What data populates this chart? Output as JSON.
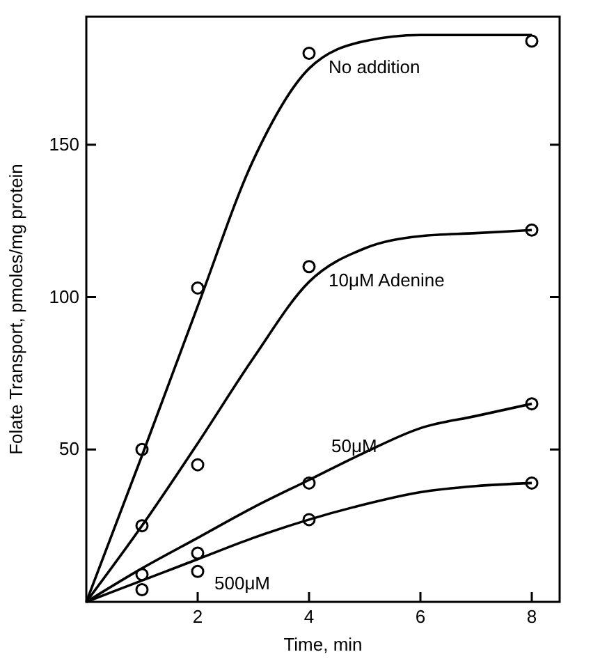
{
  "chart_data": {
    "type": "scatter",
    "xlabel": "Time, min",
    "ylabel": "Folate Transport, pmoles/mg protein",
    "xlim": [
      0,
      8.5
    ],
    "ylim": [
      0,
      192
    ],
    "xticks": [
      2,
      4,
      6,
      8
    ],
    "yticks": [
      50,
      100,
      150
    ],
    "marker": "circle",
    "grid": false,
    "series": [
      {
        "name": "No addition",
        "color": "#000000",
        "x": [
          1,
          2,
          4,
          8
        ],
        "values": [
          50,
          103,
          180,
          184
        ]
      },
      {
        "name": "10μM Adenine",
        "color": "#000000",
        "x": [
          1,
          2,
          4,
          8
        ],
        "values": [
          25,
          45,
          110,
          122
        ]
      },
      {
        "name": "50μM",
        "color": "#000000",
        "x": [
          1,
          2,
          4,
          8
        ],
        "values": [
          9,
          16,
          39,
          65
        ]
      },
      {
        "name": "500μM",
        "color": "#000000",
        "x": [
          1,
          2,
          4,
          8
        ],
        "values": [
          4,
          10,
          27,
          39
        ]
      },
      {
        "type": "line",
        "marker": "none",
        "color": "#000000",
        "x": [
          0,
          1,
          2,
          3,
          4,
          5,
          6,
          7,
          8
        ],
        "values": [
          0,
          48,
          97,
          145,
          175,
          184,
          186,
          186,
          186
        ]
      },
      {
        "type": "line",
        "marker": "none",
        "color": "#000000",
        "x": [
          0,
          1,
          2,
          3,
          4,
          5,
          6,
          7,
          8
        ],
        "values": [
          0,
          25,
          52,
          80,
          105,
          116,
          120,
          121,
          122
        ]
      },
      {
        "type": "line",
        "marker": "none",
        "color": "#000000",
        "x": [
          0,
          1,
          2,
          3,
          4,
          5,
          6,
          7,
          8
        ],
        "values": [
          0,
          11,
          21,
          31,
          40,
          49,
          57,
          61,
          65
        ]
      },
      {
        "type": "line",
        "marker": "none",
        "color": "#000000",
        "x": [
          0,
          1,
          2,
          3,
          4,
          5,
          6,
          7,
          8
        ],
        "values": [
          0,
          7,
          14,
          21,
          27,
          32,
          36,
          38,
          39
        ]
      }
    ]
  }
}
